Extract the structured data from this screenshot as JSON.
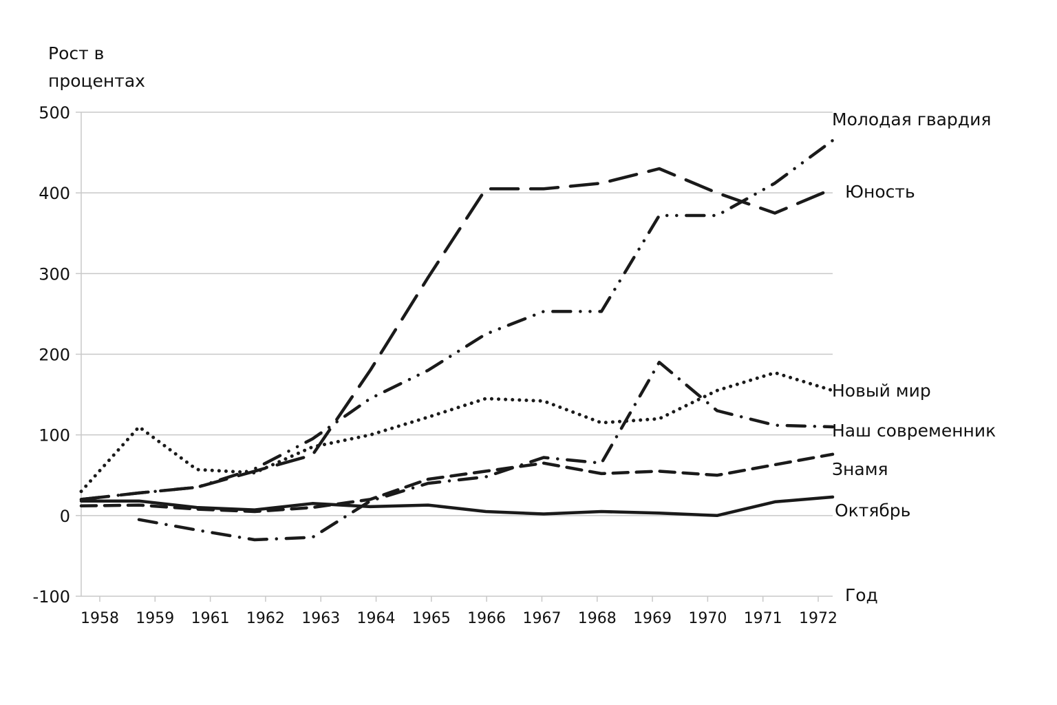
{
  "chart_data": {
    "type": "line",
    "ylabel_lines": [
      "Рост в",
      "процентах"
    ],
    "xlabel": "Год",
    "ylim": [
      -100,
      500
    ],
    "yticks": [
      -100,
      0,
      100,
      200,
      300,
      400,
      500
    ],
    "grid": true,
    "categories": [
      "1958",
      "1959",
      "1961",
      "1962",
      "1963",
      "1964",
      "1965",
      "1966",
      "1967",
      "1968",
      "1969",
      "1970",
      "1971",
      "1972"
    ],
    "series": [
      {
        "name": "Молодая гвардия",
        "style": "dash-dot-dot",
        "values": [
          20,
          28,
          35,
          58,
          95,
          145,
          180,
          225,
          253,
          253,
          372,
          372,
          412,
          465
        ]
      },
      {
        "name": "Юность",
        "style": "long-dash",
        "values": [
          20,
          28,
          35,
          55,
          75,
          180,
          295,
          405,
          405,
          412,
          430,
          400,
          375,
          405
        ]
      },
      {
        "name": "Новый мир",
        "style": "dotted",
        "values": [
          30,
          110,
          57,
          53,
          85,
          100,
          122,
          145,
          142,
          115,
          120,
          155,
          177,
          155
        ]
      },
      {
        "name": "Наш современник",
        "style": "dash-dot",
        "values": [
          null,
          -5,
          -18,
          -30,
          -27,
          18,
          40,
          48,
          72,
          65,
          190,
          130,
          112,
          110
        ]
      },
      {
        "name": "Знамя",
        "style": "dashed",
        "values": [
          12,
          13,
          8,
          5,
          10,
          20,
          45,
          55,
          65,
          52,
          55,
          50,
          63,
          76
        ]
      },
      {
        "name": "Октябрь",
        "style": "solid",
        "values": [
          18,
          18,
          10,
          7,
          15,
          11,
          13,
          5,
          2,
          5,
          3,
          0,
          17,
          23
        ]
      }
    ],
    "line_color": "#1a1a1a",
    "grid_color": "#c8c8c8"
  }
}
